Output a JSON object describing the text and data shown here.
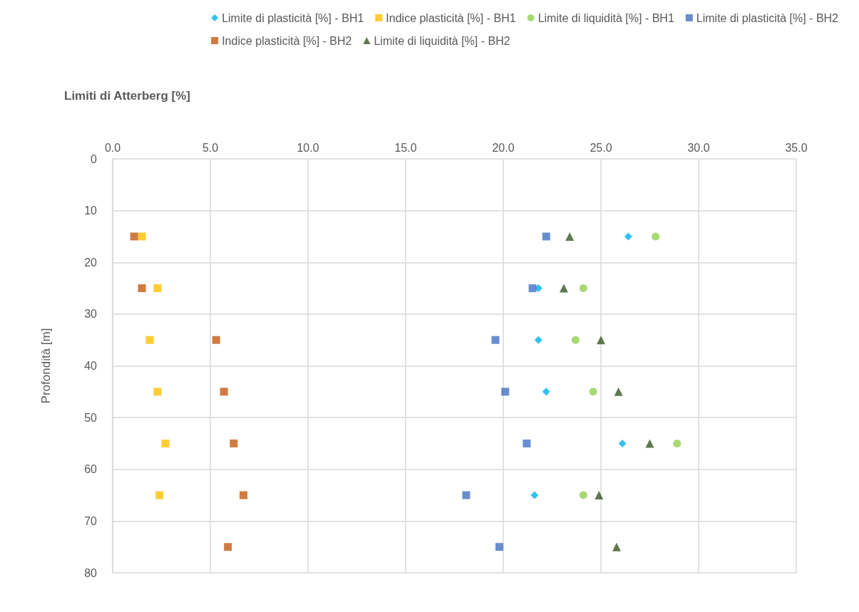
{
  "chart_data": {
    "type": "scatter",
    "xlabel": "Limiti di Atterberg [%]",
    "ylabel": "Profondità [m]",
    "xlim": [
      0,
      35
    ],
    "xticks": [
      {
        "value": 0,
        "label": "0.0"
      },
      {
        "value": 5,
        "label": "5.0"
      },
      {
        "value": 10,
        "label": "10.0"
      },
      {
        "value": 15,
        "label": "15.0"
      },
      {
        "value": 20,
        "label": "20.0"
      },
      {
        "value": 25,
        "label": "25.0"
      },
      {
        "value": 30,
        "label": "30.0"
      },
      {
        "value": 35,
        "label": "35.0"
      }
    ],
    "ylim": [
      80,
      0
    ],
    "yticks": [
      0,
      10,
      20,
      30,
      40,
      50,
      60,
      70,
      80
    ],
    "grid": true,
    "legend": "top right",
    "series": [
      {
        "name": "Limite di plasticità [%] - BH1",
        "color": "#00b0f0",
        "marker": "diamond",
        "x": [
          26.4,
          21.8,
          21.8,
          22.2,
          26.1,
          21.6
        ],
        "values": [
          15,
          25,
          35,
          45,
          55,
          65
        ]
      },
      {
        "name": "Indice plasticità [%] - BH1",
        "color": "#ffc000",
        "marker": "square",
        "x": [
          1.5,
          2.3,
          1.9,
          2.3,
          2.7,
          2.4
        ],
        "values": [
          15,
          25,
          35,
          45,
          55,
          65
        ]
      },
      {
        "name": "Limite di liquidità [%] - BH1",
        "color": "#92d050",
        "marker": "circle",
        "x": [
          27.8,
          24.1,
          23.7,
          24.6,
          28.9,
          24.1
        ],
        "values": [
          15,
          25,
          35,
          45,
          55,
          65
        ]
      },
      {
        "name": "Limite di plasticità [%] - BH2",
        "color": "#4472c4",
        "marker": "square",
        "x": [
          22.2,
          21.5,
          19.6,
          20.1,
          21.2,
          18.1,
          19.8
        ],
        "values": [
          15,
          25,
          35,
          45,
          55,
          65,
          75
        ]
      },
      {
        "name": "Indice plasticità [%] - BH2",
        "color": "#c55a11",
        "marker": "square",
        "x": [
          1.1,
          1.5,
          5.3,
          5.7,
          6.2,
          6.7,
          5.9
        ],
        "values": [
          15,
          25,
          35,
          45,
          55,
          65,
          75
        ]
      },
      {
        "name": "Limite di liquidità [%] - BH2",
        "color": "#375623",
        "marker": "triangle",
        "x": [
          23.4,
          23.1,
          25.0,
          25.9,
          27.5,
          24.9,
          25.8
        ],
        "values": [
          15,
          25,
          35,
          45,
          55,
          65,
          75
        ]
      }
    ]
  }
}
